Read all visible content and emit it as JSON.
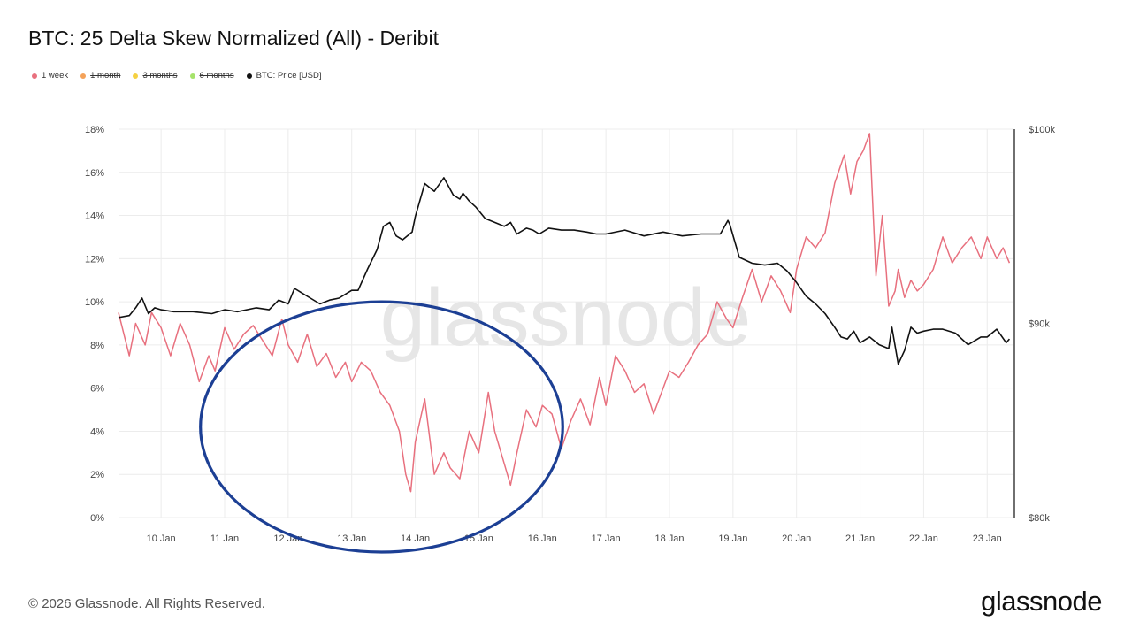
{
  "title": "BTC: 25 Delta Skew Normalized (All) - Deribit",
  "legend": [
    {
      "label": "1 week",
      "color": "#e8707e",
      "hidden": false
    },
    {
      "label": "1 month",
      "color": "#f4a259",
      "hidden": true
    },
    {
      "label": "3 months",
      "color": "#f5d142",
      "hidden": true
    },
    {
      "label": "6 months",
      "color": "#a6e36b",
      "hidden": true
    },
    {
      "label": "BTC: Price [USD]",
      "color": "#111111",
      "hidden": false
    }
  ],
  "footer": "© 2026 Glassnode. All Rights Reserved.",
  "brand": "glassnode",
  "watermark": "glassnode",
  "chart_data": {
    "type": "line",
    "grid": true,
    "x_ticks": [
      "10 Jan",
      "11 Jan",
      "12 Jan",
      "13 Jan",
      "14 Jan",
      "15 Jan",
      "16 Jan",
      "17 Jan",
      "18 Jan",
      "19 Jan",
      "20 Jan",
      "21 Jan",
      "22 Jan",
      "23 Jan"
    ],
    "xlim_days": [
      9.33,
      23.4
    ],
    "y_left_ticks": [
      "0%",
      "2%",
      "4%",
      "6%",
      "8%",
      "10%",
      "12%",
      "14%",
      "16%",
      "18%"
    ],
    "y_left_lim": [
      0,
      18
    ],
    "y_right_ticks": [
      "$80k",
      "$90k",
      "$100k"
    ],
    "y_right_lim": [
      80000,
      100000
    ],
    "annotation": {
      "type": "ellipse",
      "color": "#1c3f94",
      "x_center": 13.47,
      "y_center": 4.2,
      "x_radius": 2.85,
      "y_radius": 5.8
    },
    "series": [
      {
        "name": "1 week",
        "color": "#e8707e",
        "axis": "left",
        "x": [
          9.33,
          9.5,
          9.6,
          9.75,
          9.85,
          10.0,
          10.15,
          10.3,
          10.45,
          10.6,
          10.75,
          10.85,
          11.0,
          11.15,
          11.3,
          11.45,
          11.6,
          11.75,
          11.9,
          12.0,
          12.15,
          12.3,
          12.45,
          12.6,
          12.75,
          12.9,
          13.0,
          13.15,
          13.3,
          13.45,
          13.6,
          13.75,
          13.85,
          13.93,
          14.0,
          14.15,
          14.3,
          14.45,
          14.55,
          14.7,
          14.85,
          15.0,
          15.15,
          15.25,
          15.35,
          15.5,
          15.6,
          15.75,
          15.9,
          16.0,
          16.15,
          16.3,
          16.45,
          16.6,
          16.75,
          16.9,
          17.0,
          17.15,
          17.3,
          17.45,
          17.6,
          17.75,
          17.9,
          18.0,
          18.15,
          18.3,
          18.45,
          18.6,
          18.75,
          18.9,
          19.0,
          19.15,
          19.3,
          19.45,
          19.6,
          19.75,
          19.9,
          20.0,
          20.15,
          20.3,
          20.45,
          20.6,
          20.75,
          20.85,
          20.95,
          21.05,
          21.15,
          21.25,
          21.35,
          21.45,
          21.55,
          21.6,
          21.7,
          21.8,
          21.9,
          22.0,
          22.15,
          22.3,
          22.45,
          22.6,
          22.75,
          22.9,
          23.0,
          23.15,
          23.25,
          23.35
        ],
        "y": [
          9.5,
          7.5,
          9.0,
          8.0,
          9.5,
          8.8,
          7.5,
          9.0,
          8.0,
          6.3,
          7.5,
          6.8,
          8.8,
          7.8,
          8.5,
          8.9,
          8.2,
          7.5,
          9.2,
          8.0,
          7.2,
          8.5,
          7.0,
          7.6,
          6.5,
          7.2,
          6.3,
          7.2,
          6.8,
          5.8,
          5.2,
          4.0,
          2.0,
          1.2,
          3.5,
          5.5,
          2.0,
          3.0,
          2.3,
          1.8,
          4.0,
          3.0,
          5.8,
          4.0,
          3.0,
          1.5,
          3.0,
          5.0,
          4.2,
          5.2,
          4.8,
          3.2,
          4.5,
          5.5,
          4.3,
          6.5,
          5.2,
          7.5,
          6.8,
          5.8,
          6.2,
          4.8,
          6.0,
          6.8,
          6.5,
          7.2,
          8.0,
          8.5,
          10.0,
          9.2,
          8.8,
          10.2,
          11.5,
          10.0,
          11.2,
          10.5,
          9.5,
          11.5,
          13.0,
          12.5,
          13.2,
          15.5,
          16.8,
          15.0,
          16.5,
          17.0,
          17.8,
          11.2,
          14.0,
          9.8,
          10.5,
          11.5,
          10.2,
          11.0,
          10.5,
          10.8,
          11.5,
          13.0,
          11.8,
          12.5,
          13.0,
          12.0,
          13.0,
          12.0,
          12.5,
          11.8
        ]
      },
      {
        "name": "BTC: Price [USD]",
        "color": "#111111",
        "axis": "right",
        "x": [
          9.33,
          9.5,
          9.6,
          9.7,
          9.8,
          9.9,
          10.0,
          10.2,
          10.5,
          10.8,
          11.0,
          11.2,
          11.5,
          11.7,
          11.85,
          12.0,
          12.1,
          12.2,
          12.35,
          12.5,
          12.65,
          12.8,
          12.9,
          13.0,
          13.1,
          13.25,
          13.4,
          13.5,
          13.6,
          13.7,
          13.8,
          13.95,
          14.0,
          14.15,
          14.3,
          14.45,
          14.6,
          14.7,
          14.75,
          14.85,
          14.95,
          15.1,
          15.25,
          15.4,
          15.5,
          15.6,
          15.75,
          15.85,
          15.95,
          16.1,
          16.3,
          16.5,
          16.7,
          16.85,
          17.0,
          17.3,
          17.6,
          17.9,
          18.2,
          18.5,
          18.8,
          18.92,
          18.95,
          19.1,
          19.3,
          19.5,
          19.7,
          19.85,
          19.95,
          20.0,
          20.15,
          20.3,
          20.45,
          20.6,
          20.7,
          20.8,
          20.9,
          21.0,
          21.15,
          21.3,
          21.45,
          21.5,
          21.6,
          21.7,
          21.8,
          21.9,
          22.0,
          22.15,
          22.3,
          22.5,
          22.7,
          22.9,
          23.0,
          23.15,
          23.3,
          23.35
        ],
        "y": [
          90300,
          90400,
          90800,
          91300,
          90500,
          90800,
          90700,
          90600,
          90600,
          90500,
          90700,
          90600,
          90800,
          90700,
          91200,
          91000,
          91800,
          91600,
          91300,
          91000,
          91200,
          91300,
          91500,
          91700,
          91700,
          92800,
          93800,
          95000,
          95200,
          94500,
          94300,
          94700,
          95500,
          97200,
          96800,
          97500,
          96600,
          96400,
          96700,
          96300,
          96000,
          95400,
          95200,
          95000,
          95200,
          94600,
          94900,
          94800,
          94600,
          94900,
          94800,
          94800,
          94700,
          94600,
          94600,
          94800,
          94500,
          94700,
          94500,
          94600,
          94600,
          95300,
          95100,
          93400,
          93100,
          93000,
          93100,
          92700,
          92300,
          92100,
          91400,
          91000,
          90500,
          89800,
          89300,
          89200,
          89600,
          89000,
          89300,
          88900,
          88700,
          89800,
          87900,
          88600,
          89800,
          89500,
          89600,
          89700,
          89700,
          89500,
          88900,
          89300,
          89300,
          89700,
          89000,
          89200
        ]
      }
    ]
  }
}
